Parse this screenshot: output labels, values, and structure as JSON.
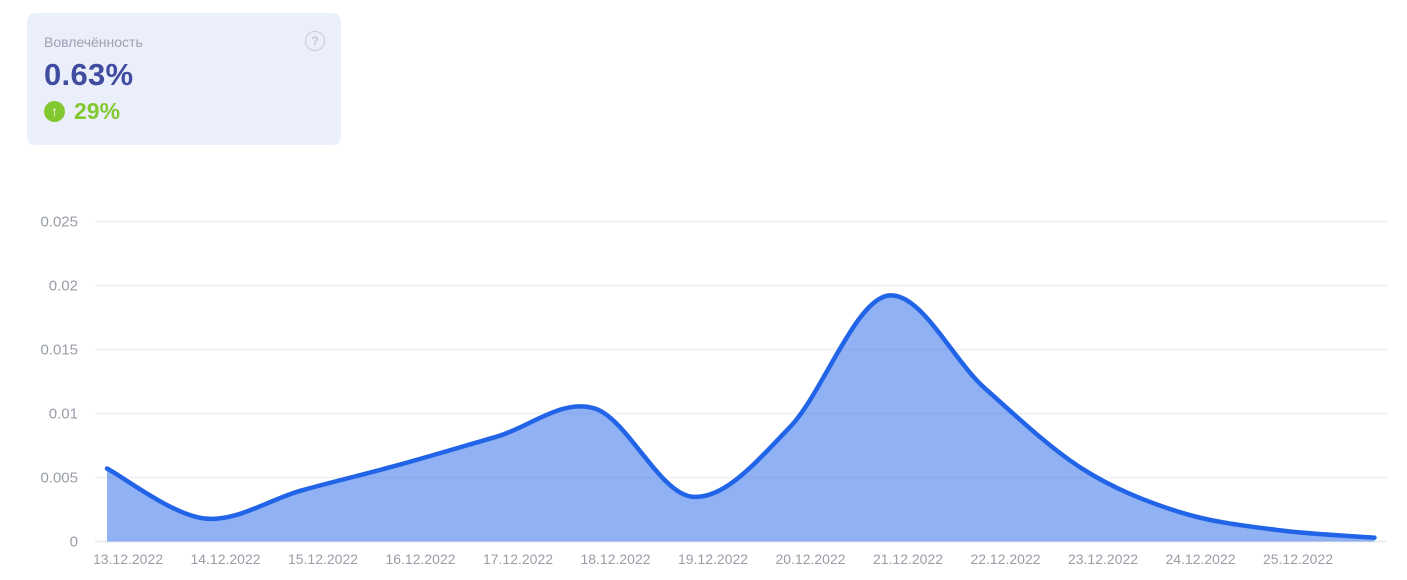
{
  "card": {
    "label": "Вовлечённость",
    "value": "0.63%",
    "delta": "29%",
    "delta_direction": "up",
    "colors": {
      "background": "#EBEEFB",
      "label": "#9EA2B0",
      "value": "#3F4C9F",
      "delta": "#82C930",
      "help_icon": "#C9CCD6"
    }
  },
  "icons": {
    "help": "?",
    "up_arrow": "↑"
  },
  "chart_data": {
    "type": "area",
    "title": "",
    "xlabel": "",
    "ylabel": "",
    "categories": [
      "13.12.2022",
      "14.12.2022",
      "15.12.2022",
      "16.12.2022",
      "17.12.2022",
      "18.12.2022",
      "19.12.2022",
      "20.12.2022",
      "21.12.2022",
      "22.12.2022",
      "23.12.2022",
      "24.12.2022",
      "25.12.2022",
      ""
    ],
    "values": [
      0.0057,
      0.0018,
      0.004,
      0.006,
      0.0082,
      0.0104,
      0.0035,
      0.0089,
      0.0192,
      0.012,
      0.0057,
      0.0023,
      0.0009,
      0.0003
    ],
    "ylim": [
      0,
      0.025
    ],
    "yticks": [
      0,
      0.005,
      0.01,
      0.015,
      0.02,
      0.025
    ],
    "ytick_labels": [
      "0",
      "0.005",
      "0.01",
      "0.015",
      "0.02",
      "0.025"
    ],
    "grid": true,
    "legend": false,
    "colors": {
      "line": "#2164E8",
      "fill_opacity": 0.5,
      "grid": "#F3F3F6",
      "zero_line": "#EDEEF1",
      "tick_text": "#989DA7"
    }
  }
}
